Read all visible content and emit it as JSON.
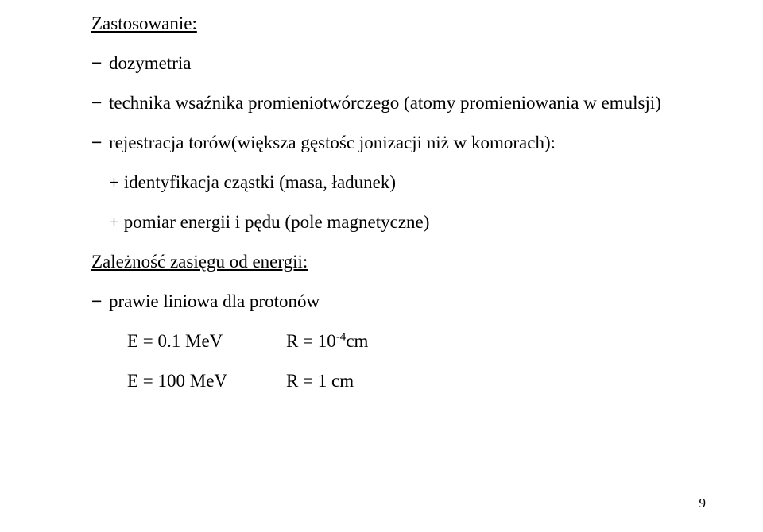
{
  "heading1": "Zastosowanie:",
  "bullets": {
    "b1": "dozymetria",
    "b2": "technika wsaźnika promieniotwórczego (atomy promieniowania w emulsji)",
    "b3": "rejestracja torów(większa gęstośc jonizacji niż w komorach):",
    "b3_sub1": "+ identyfikacja cząstki (masa, ładunek)",
    "b3_sub2": "+ pomiar energii i pędu (pole magnetyczne)"
  },
  "heading2": "Zależność zasięgu od energii:",
  "b4": "prawie liniowa dla protonów",
  "eq1": {
    "left": "E = 0.1 MeV",
    "right_pre": "R = 10",
    "right_sup": "-4",
    "right_post": "cm"
  },
  "eq2": {
    "left": "E = 100 MeV",
    "right": "R = 1 cm"
  },
  "dash": "−",
  "page_number": "9",
  "colors": {
    "text": "#000000",
    "background": "#ffffff"
  },
  "fontsizes": {
    "body": 23,
    "sup": 15,
    "pagenum": 17
  }
}
